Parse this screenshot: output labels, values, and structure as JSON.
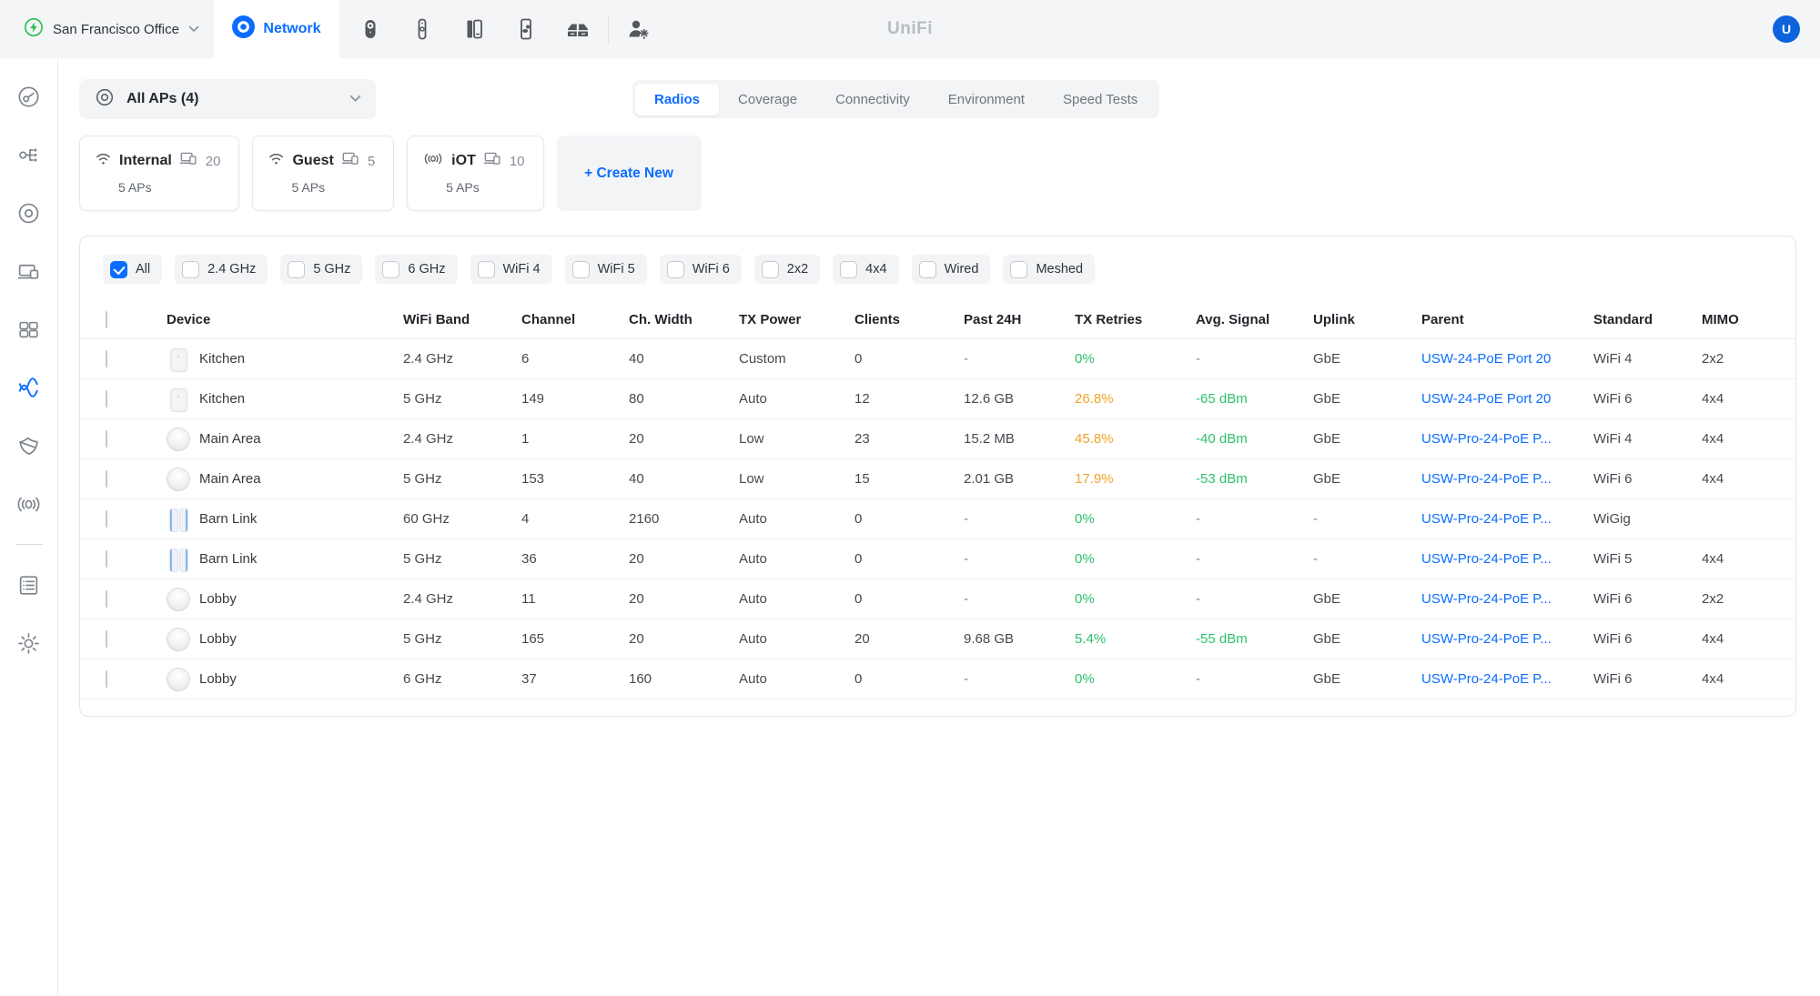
{
  "header": {
    "site_name": "San Francisco Office",
    "network_label": "Network",
    "logo_text": "UniFi",
    "avatar_label": "U",
    "app_icon_names": [
      "camera-icon",
      "sensor-icon",
      "talk-icon",
      "connect-icon",
      "storage-icon",
      "admin-users-icon"
    ]
  },
  "sidebar": {
    "icon_names": [
      "dashboard-icon",
      "topology-icon",
      "devices-icon",
      "clients-icon",
      "networks-icon",
      "wifi-icon",
      "security-icon",
      "hotspot-icon",
      "logs-icon",
      "settings-icon"
    ],
    "active": "wifi-icon"
  },
  "toolbar": {
    "ap_selector_label": "All APs (4)",
    "tabs": [
      "Radios",
      "Coverage",
      "Connectivity",
      "Environment",
      "Speed Tests"
    ],
    "active_tab": "Radios"
  },
  "wlans": [
    {
      "name": "Internal",
      "icon": "wifi",
      "clients": "20",
      "aps": "5 APs"
    },
    {
      "name": "Guest",
      "icon": "wifi",
      "clients": "5",
      "aps": "5 APs"
    },
    {
      "name": "iOT",
      "icon": "broadcast",
      "clients": "10",
      "aps": "5 APs"
    }
  ],
  "create_new_label": "+ Create New",
  "filters": [
    {
      "label": "All",
      "checked": true
    },
    {
      "label": "2.4 GHz",
      "checked": false
    },
    {
      "label": "5 GHz",
      "checked": false
    },
    {
      "label": "6 GHz",
      "checked": false
    },
    {
      "label": "WiFi 4",
      "checked": false
    },
    {
      "label": "WiFi 5",
      "checked": false
    },
    {
      "label": "WiFi 6",
      "checked": false
    },
    {
      "label": "2x2",
      "checked": false
    },
    {
      "label": "4x4",
      "checked": false
    },
    {
      "label": "Wired",
      "checked": false
    },
    {
      "label": "Meshed",
      "checked": false
    }
  ],
  "table": {
    "columns": [
      "Device",
      "WiFi Band",
      "Channel",
      "Ch. Width",
      "TX Power",
      "Clients",
      "Past 24H",
      "TX Retries",
      "Avg. Signal",
      "Uplink",
      "Parent",
      "Standard",
      "MIMO"
    ],
    "rows": [
      {
        "device": "Kitchen",
        "icon": "inwall",
        "band": "2.4 GHz",
        "channel": "6",
        "ch_width": "40",
        "tx_power": "Custom",
        "clients": "0",
        "past24h": "-",
        "tx_retries": "0%",
        "retries_tone": "green",
        "avg_signal": "-",
        "signal_tone": "",
        "uplink": "GbE",
        "parent": "USW-24-PoE Port 20",
        "standard": "WiFi 4",
        "mimo": "2x2"
      },
      {
        "device": "Kitchen",
        "icon": "inwall",
        "band": "5 GHz",
        "channel": "149",
        "ch_width": "80",
        "tx_power": "Auto",
        "clients": "12",
        "past24h": "12.6 GB",
        "tx_retries": "26.8%",
        "retries_tone": "orange",
        "avg_signal": "-65 dBm",
        "signal_tone": "green",
        "uplink": "GbE",
        "parent": "USW-24-PoE Port 20",
        "standard": "WiFi 6",
        "mimo": "4x4"
      },
      {
        "device": "Main Area",
        "icon": "disc",
        "band": "2.4 GHz",
        "channel": "1",
        "ch_width": "20",
        "tx_power": "Low",
        "clients": "23",
        "past24h": "15.2 MB",
        "tx_retries": "45.8%",
        "retries_tone": "orange",
        "avg_signal": "-40 dBm",
        "signal_tone": "green",
        "uplink": "GbE",
        "parent": "USW-Pro-24-PoE P...",
        "standard": "WiFi 4",
        "mimo": "4x4"
      },
      {
        "device": "Main Area",
        "icon": "disc",
        "band": "5 GHz",
        "channel": "153",
        "ch_width": "40",
        "tx_power": "Low",
        "clients": "15",
        "past24h": "2.01 GB",
        "tx_retries": "17.9%",
        "retries_tone": "orange",
        "avg_signal": "-53 dBm",
        "signal_tone": "green",
        "uplink": "GbE",
        "parent": "USW-Pro-24-PoE P...",
        "standard": "WiFi 6",
        "mimo": "4x4"
      },
      {
        "device": "Barn Link",
        "icon": "bridge",
        "band": "60 GHz",
        "channel": "4",
        "ch_width": "2160",
        "tx_power": "Auto",
        "clients": "0",
        "past24h": "-",
        "tx_retries": "0%",
        "retries_tone": "green",
        "avg_signal": "-",
        "signal_tone": "",
        "uplink": "-",
        "parent": "USW-Pro-24-PoE P...",
        "standard": "WiGig",
        "mimo": ""
      },
      {
        "device": "Barn Link",
        "icon": "bridge",
        "band": "5 GHz",
        "channel": "36",
        "ch_width": "20",
        "tx_power": "Auto",
        "clients": "0",
        "past24h": "-",
        "tx_retries": "0%",
        "retries_tone": "green",
        "avg_signal": "-",
        "signal_tone": "",
        "uplink": "-",
        "parent": "USW-Pro-24-PoE P...",
        "standard": "WiFi 5",
        "mimo": "4x4"
      },
      {
        "device": "Lobby",
        "icon": "disc",
        "band": "2.4 GHz",
        "channel": "11",
        "ch_width": "20",
        "tx_power": "Auto",
        "clients": "0",
        "past24h": "-",
        "tx_retries": "0%",
        "retries_tone": "green",
        "avg_signal": "-",
        "signal_tone": "",
        "uplink": "GbE",
        "parent": "USW-Pro-24-PoE P...",
        "standard": "WiFi 6",
        "mimo": "2x2"
      },
      {
        "device": "Lobby",
        "icon": "disc",
        "band": "5 GHz",
        "channel": "165",
        "ch_width": "20",
        "tx_power": "Auto",
        "clients": "20",
        "past24h": "9.68 GB",
        "tx_retries": "5.4%",
        "retries_tone": "green",
        "avg_signal": "-55 dBm",
        "signal_tone": "green",
        "uplink": "GbE",
        "parent": "USW-Pro-24-PoE P...",
        "standard": "WiFi 6",
        "mimo": "4x4"
      },
      {
        "device": "Lobby",
        "icon": "disc",
        "band": "6 GHz",
        "channel": "37",
        "ch_width": "160",
        "tx_power": "Auto",
        "clients": "0",
        "past24h": "-",
        "tx_retries": "0%",
        "retries_tone": "green",
        "avg_signal": "-",
        "signal_tone": "",
        "uplink": "GbE",
        "parent": "USW-Pro-24-PoE P...",
        "standard": "WiFi 6",
        "mimo": "4x4"
      }
    ]
  },
  "colors": {
    "accent": "#0b6dff",
    "green": "#2fbf6d",
    "orange": "#f0a428",
    "link": "#0b6dff"
  }
}
